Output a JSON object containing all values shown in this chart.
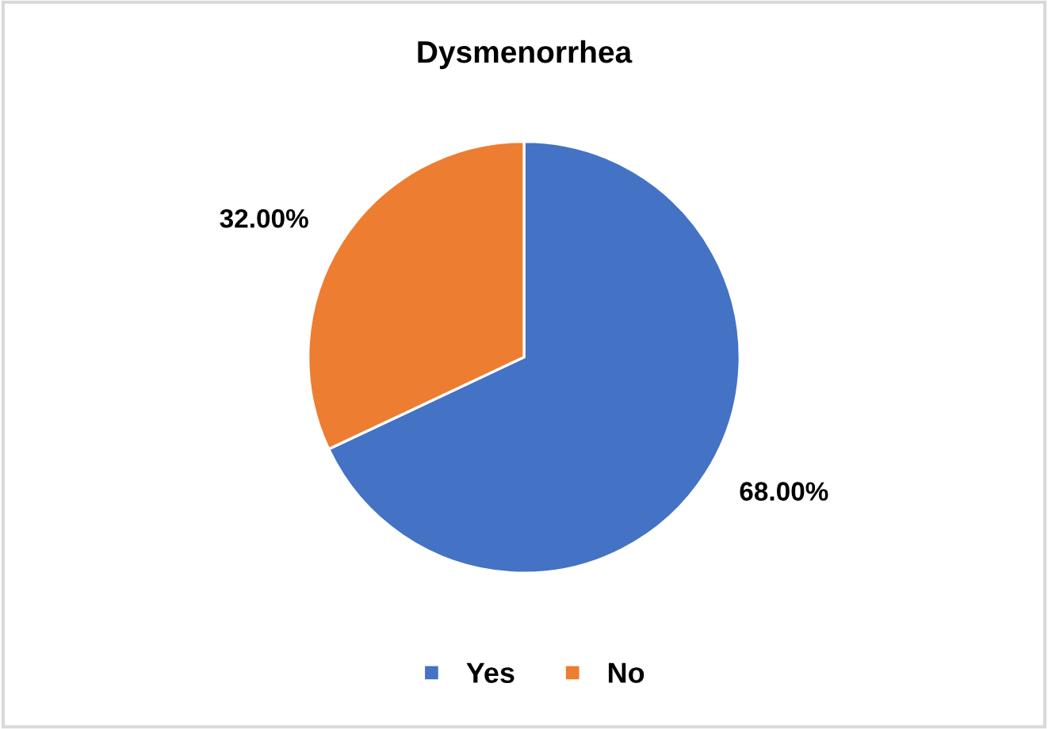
{
  "chart_data": {
    "type": "pie",
    "title": "Dysmenorrhea",
    "categories": [
      "Yes",
      "No"
    ],
    "values": [
      68,
      32
    ],
    "colors": [
      "#4472c4",
      "#ed7d31"
    ],
    "value_labels": [
      "68.00%",
      "32.00%"
    ],
    "legend": "bottom"
  }
}
